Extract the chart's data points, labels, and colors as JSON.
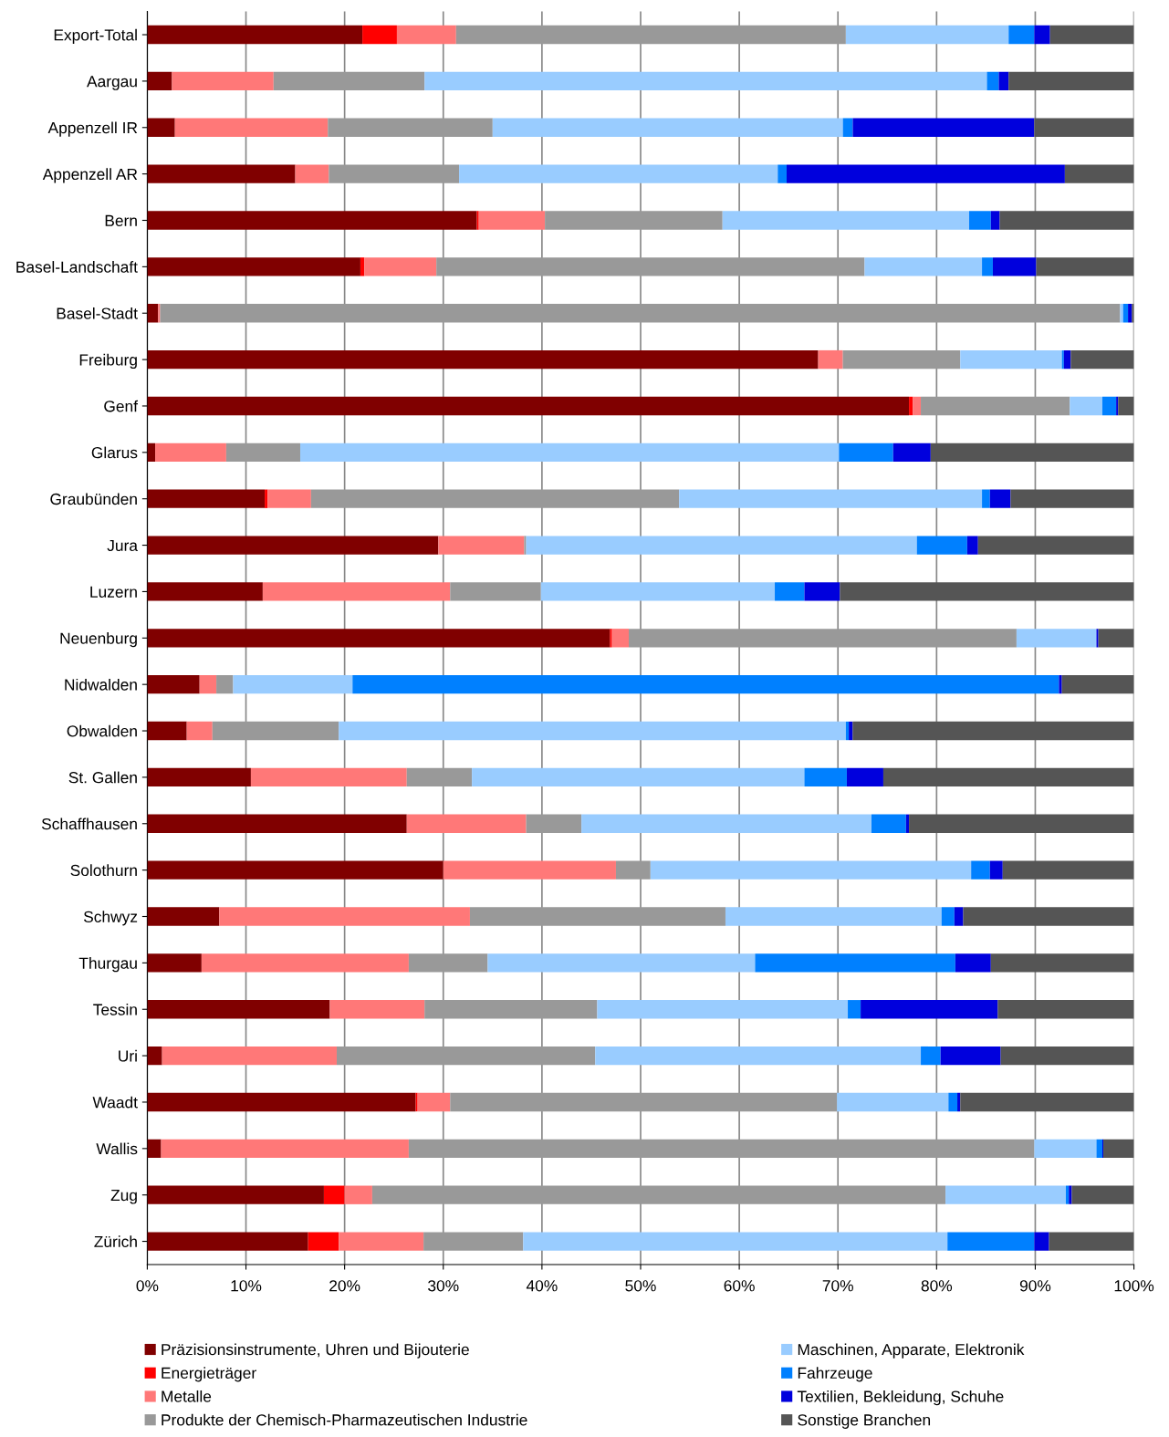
{
  "chart_data": {
    "type": "bar",
    "orientation": "horizontal",
    "stacked": true,
    "categories": [
      "Export-Total",
      "Aargau",
      "Appenzell IR",
      "Appenzell AR",
      "Bern",
      "Basel-Landschaft",
      "Basel-Stadt",
      "Freiburg",
      "Genf",
      "Glarus",
      "Graubünden",
      "Jura",
      "Luzern",
      "Neuenburg",
      "Nidwalden",
      "Obwalden",
      "St. Gallen",
      "Schaffhausen",
      "Solothurn",
      "Schwyz",
      "Thurgau",
      "Tessin",
      "Uri",
      "Waadt",
      "Wallis",
      "Zug",
      "Zürich"
    ],
    "series": [
      {
        "name": "Präzisionsinstrumente, Uhren und Bijouterie",
        "color": "#800000",
        "values": [
          21.8,
          2.5,
          2.8,
          15.0,
          33.4,
          21.6,
          1.1,
          68.0,
          77.2,
          0.8,
          11.9,
          29.5,
          11.7,
          46.9,
          5.3,
          4.0,
          10.5,
          26.3,
          30.0,
          7.3,
          5.5,
          18.5,
          1.5,
          27.2,
          1.4,
          17.9,
          16.3
        ]
      },
      {
        "name": "Energieträger",
        "color": "#ff0000",
        "values": [
          3.5,
          0,
          0,
          0,
          0.2,
          0.4,
          0,
          0,
          0.4,
          0,
          0.3,
          0,
          0,
          0.2,
          0,
          0,
          0,
          0,
          0,
          0,
          0,
          0,
          0,
          0.2,
          0,
          2.1,
          3.1
        ]
      },
      {
        "name": "Metalle",
        "color": "#ff7878",
        "values": [
          6.0,
          10.3,
          15.5,
          3.4,
          6.7,
          7.3,
          0.2,
          2.5,
          0.8,
          7.2,
          4.4,
          8.7,
          19.0,
          1.7,
          1.7,
          2.6,
          15.8,
          12.1,
          17.5,
          25.4,
          21.0,
          9.6,
          17.7,
          3.3,
          25.1,
          2.8,
          8.6
        ]
      },
      {
        "name": "Produkte der Chemisch-Pharmazeutischen Industrie",
        "color": "#999999",
        "values": [
          39.5,
          15.3,
          16.7,
          13.2,
          18.0,
          43.4,
          97.3,
          11.9,
          15.1,
          7.5,
          37.3,
          0.2,
          9.2,
          39.3,
          1.7,
          12.8,
          6.6,
          5.6,
          3.5,
          25.9,
          8.0,
          17.5,
          26.2,
          39.2,
          63.4,
          58.1,
          10.1
        ]
      },
      {
        "name": "Maschinen, Apparate, Elektronik",
        "color": "#99ccff",
        "values": [
          16.5,
          57.0,
          35.5,
          32.3,
          25.0,
          11.9,
          0.3,
          10.3,
          3.3,
          54.6,
          30.7,
          39.6,
          23.7,
          8.1,
          12.1,
          51.4,
          33.7,
          29.4,
          32.5,
          21.9,
          27.1,
          25.4,
          33.0,
          11.3,
          6.3,
          12.2,
          43.0
        ]
      },
      {
        "name": "Fahrzeuge",
        "color": "#0080ff",
        "values": [
          2.6,
          1.2,
          1.0,
          0.9,
          2.2,
          1.1,
          0.5,
          0.2,
          1.4,
          5.5,
          0.8,
          5.1,
          3.0,
          0.0,
          71.6,
          0.3,
          4.3,
          3.5,
          1.9,
          1.3,
          20.3,
          1.3,
          2.0,
          0.9,
          0.6,
          0.3,
          8.8
        ]
      },
      {
        "name": "Textilien, Bekleidung, Schuhe",
        "color": "#0000dd",
        "values": [
          1.6,
          1.0,
          18.4,
          28.2,
          0.9,
          4.4,
          0.4,
          0.7,
          0.2,
          3.8,
          2.1,
          1.1,
          3.6,
          0.2,
          0.3,
          0.4,
          3.7,
          0.3,
          1.3,
          0.9,
          3.6,
          13.9,
          6.1,
          0.3,
          0.1,
          0.3,
          1.5
        ]
      },
      {
        "name": "Sonstige Branchen",
        "color": "#555555",
        "values": [
          8.5,
          12.7,
          10.1,
          7.0,
          13.6,
          9.9,
          0.2,
          6.4,
          1.6,
          20.6,
          12.5,
          15.8,
          29.8,
          3.6,
          7.3,
          28.5,
          25.4,
          22.8,
          13.3,
          17.3,
          14.5,
          13.8,
          13.5,
          17.6,
          3.1,
          6.3,
          8.6
        ]
      }
    ],
    "xlim": [
      0,
      100
    ],
    "xticks": [
      {
        "value": 0,
        "label": "0%"
      },
      {
        "value": 10,
        "label": "10%"
      },
      {
        "value": 20,
        "label": "20%"
      },
      {
        "value": 30,
        "label": "30%"
      },
      {
        "value": 40,
        "label": "40%"
      },
      {
        "value": 50,
        "label": "50%"
      },
      {
        "value": 60,
        "label": "60%"
      },
      {
        "value": 70,
        "label": "70%"
      },
      {
        "value": 80,
        "label": "80%"
      },
      {
        "value": 90,
        "label": "90%"
      },
      {
        "value": 100,
        "label": "100%"
      }
    ],
    "grid": "x",
    "legend": "bottom"
  }
}
